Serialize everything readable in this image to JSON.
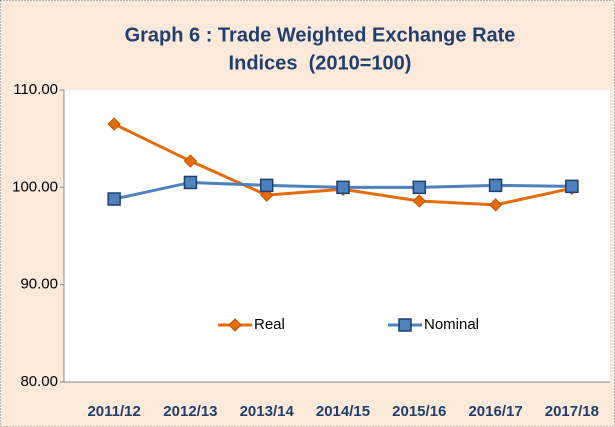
{
  "chart_data": {
    "type": "line",
    "title": [
      "Graph 6 : Trade Weighted Exchange Rate",
      "Indices  (2010=100)"
    ],
    "categories": [
      "2011/12",
      "2012/13",
      "2013/14",
      "2014/15",
      "2015/16",
      "2016/17",
      "2017/18"
    ],
    "series": [
      {
        "name": "Real",
        "color": "#e46c0a",
        "marker": "diamond",
        "values": [
          106.5,
          102.7,
          99.2,
          99.8,
          98.6,
          98.2,
          99.9
        ]
      },
      {
        "name": "Nominal",
        "color": "#4f81bd",
        "marker": "square",
        "values": [
          98.8,
          100.5,
          100.2,
          100.0,
          100.0,
          100.2,
          100.1
        ]
      }
    ],
    "ylim": [
      80,
      110
    ],
    "yticks": [
      {
        "value": 80,
        "label": "80.00"
      },
      {
        "value": 90,
        "label": "90.00"
      },
      {
        "value": 100,
        "label": "100.00"
      },
      {
        "value": 110,
        "label": "110.00"
      }
    ],
    "grid": false
  }
}
